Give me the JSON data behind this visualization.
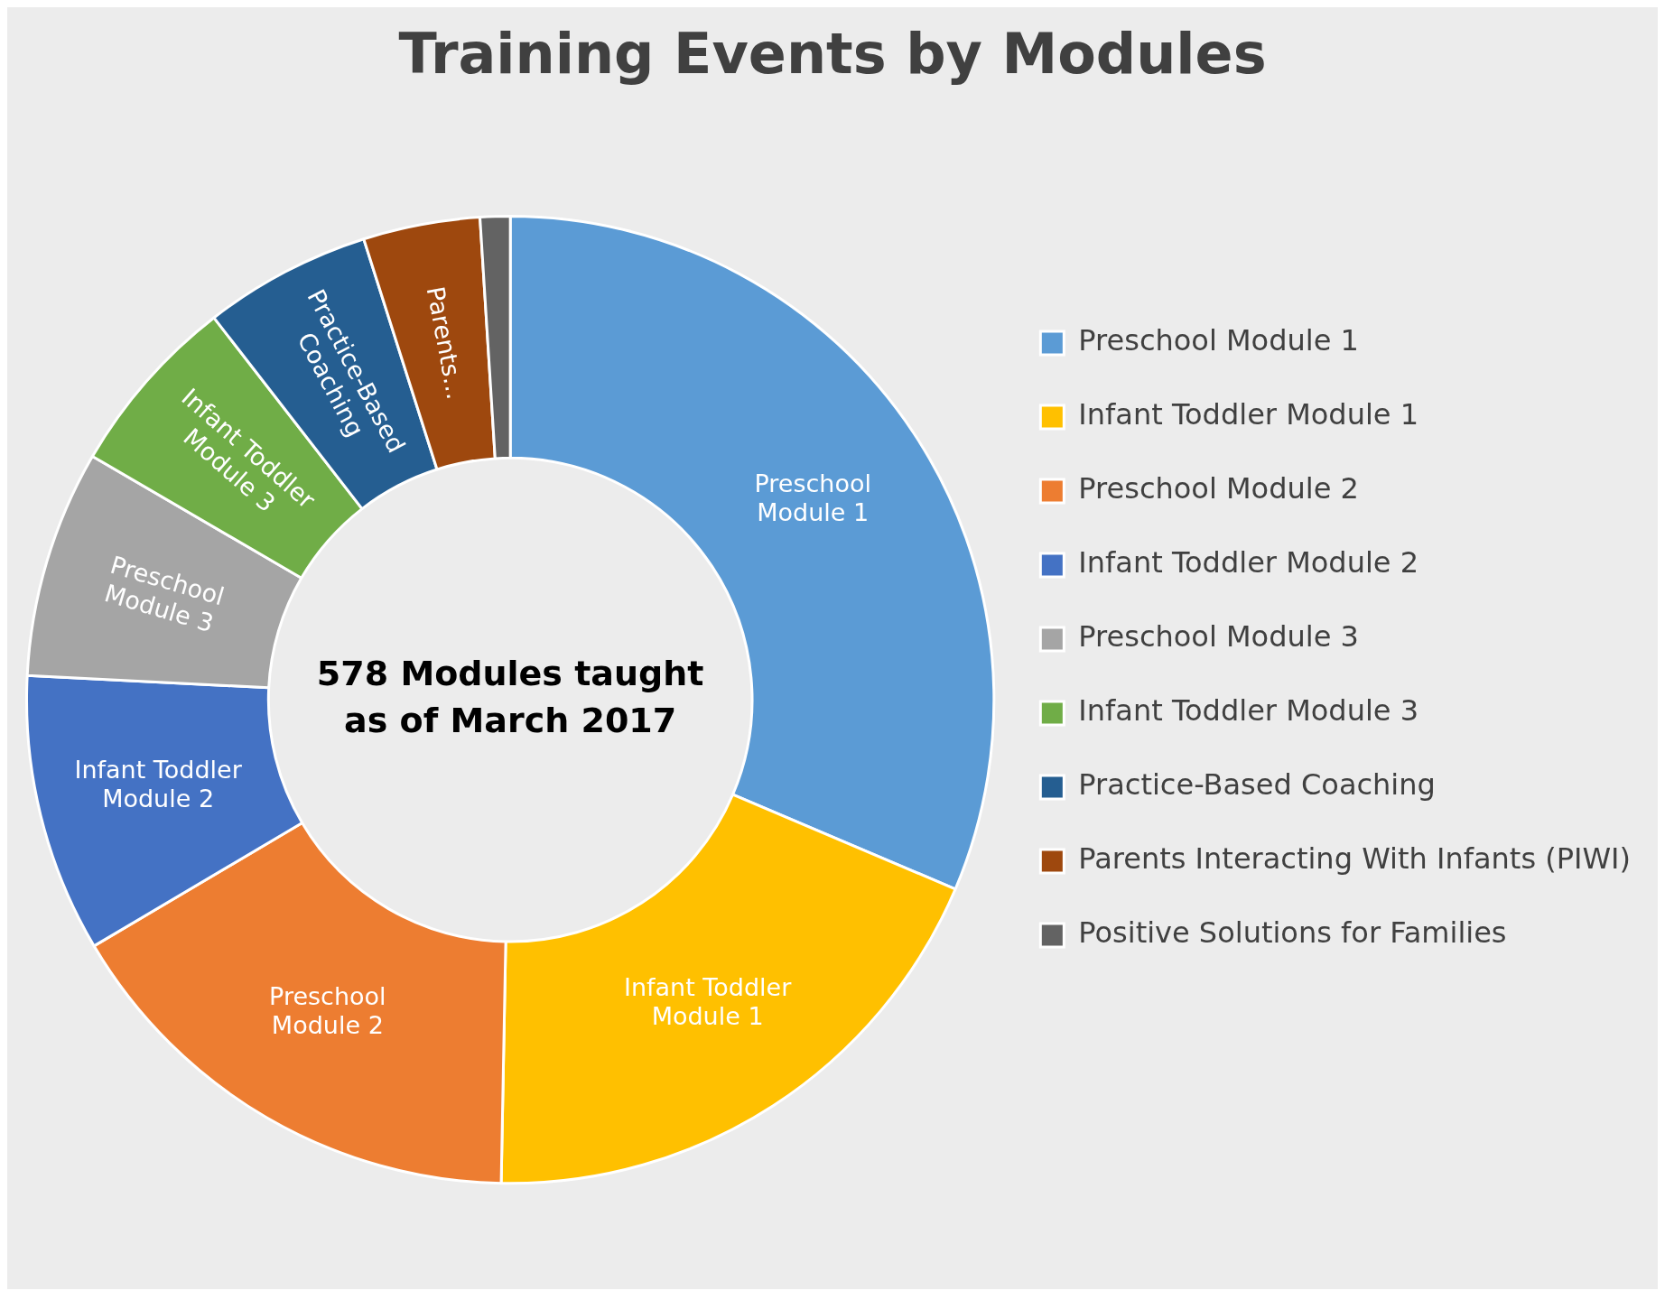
{
  "chart_data": {
    "type": "donut",
    "title": "Training Events by Modules",
    "categories": [
      "Preschool Module 1",
      "Infant Toddler Module 1",
      "Preschool Module 2",
      "Infant Toddler Module 2",
      "Preschool Module 3",
      "Infant Toddler Module 3",
      "Practice-Based Coaching",
      "Parents Interacting With Infants (PIWI)",
      "Positive Solutions for Families"
    ],
    "values": [
      31.4,
      18.9,
      16.2,
      9.3,
      7.6,
      6.1,
      5.6,
      3.9,
      1.0
    ],
    "colors": [
      "#5b9bd5",
      "#ffc000",
      "#ed7d31",
      "#4472c4",
      "#a5a5a5",
      "#70ad47",
      "#255e91",
      "#9e480e",
      "#636363"
    ],
    "value_labels": [
      "Preschool Module 1",
      "Infant Toddler Module 1",
      "Preschool Module 2",
      "Infant Toddler Module 2",
      "Preschool Module 3",
      "Infant Toddler Module 3",
      "Practice-Based Coaching",
      "Parents...",
      null
    ],
    "annotations": [
      "578 Modules taught as of March 2017"
    ],
    "legend": "right"
  }
}
